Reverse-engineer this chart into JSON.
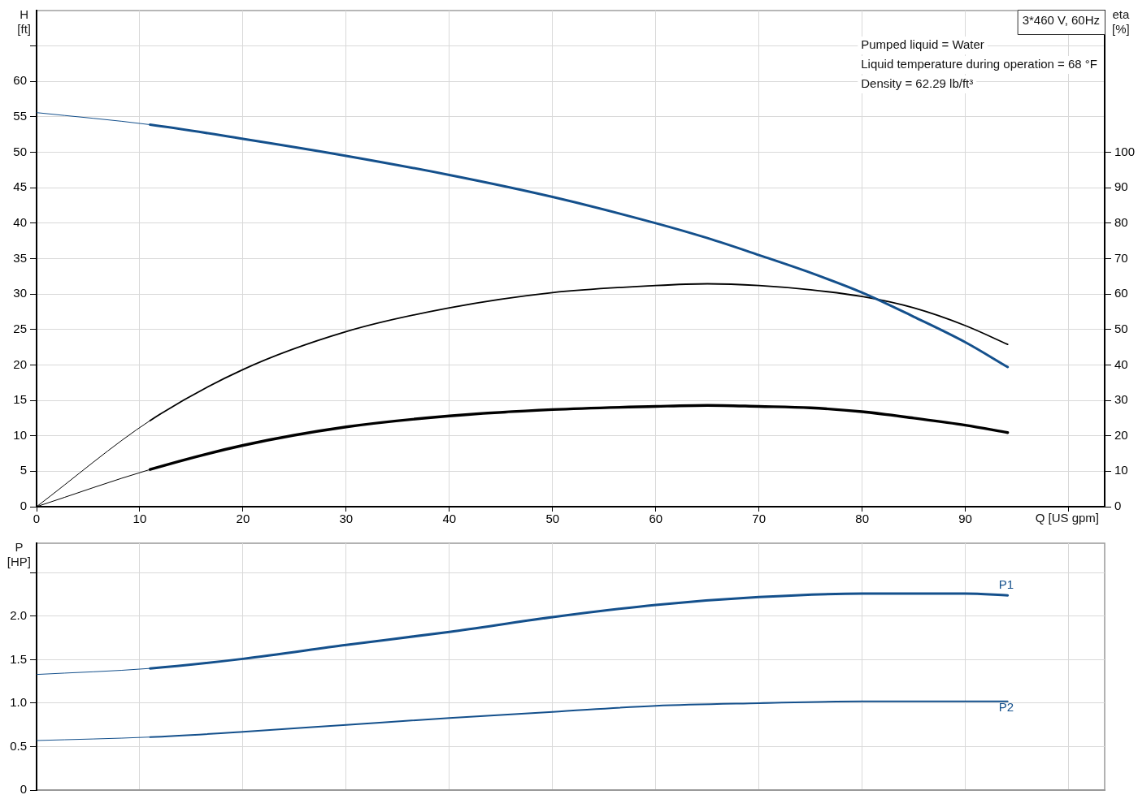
{
  "chart_data": [
    {
      "type": "line",
      "title": "3*460 V, 60Hz",
      "xlabel": "Q [US gpm]",
      "ylabel": "H [ft]",
      "y2label": "eta [%]",
      "annotations": [
        "Pumped liquid = Water",
        "Liquid temperature during operation = 68 °F",
        "Density = 62.29 lb/ft³"
      ],
      "x": [
        0,
        11,
        20,
        30,
        40,
        50,
        60,
        65,
        70,
        75,
        80,
        85,
        90,
        94.1
      ],
      "series": [
        {
          "color": "#14508c",
          "values": [
            55.6,
            53.9,
            51.9,
            49.5,
            46.8,
            43.7,
            40.0,
            37.9,
            35.5,
            33.0,
            30.2,
            26.8,
            23.2,
            19.7
          ]
        },
        {
          "color": "#000000",
          "axis": "y2",
          "values": [
            0,
            24.3,
            38.7,
            49.4,
            56.1,
            60.4,
            62.4,
            62.9,
            62.4,
            61.2,
            59.3,
            56.1,
            51.1,
            45.8
          ]
        },
        {
          "color": "#000000",
          "axis": "y2",
          "values": [
            0,
            10.5,
            17.3,
            22.5,
            25.6,
            27.4,
            28.3,
            28.6,
            28.3,
            27.9,
            26.8,
            25.0,
            23.0,
            20.9
          ]
        }
      ],
      "xlim": [
        0,
        103.5
      ],
      "xticks": [
        0,
        10,
        20,
        30,
        40,
        50,
        60,
        70,
        80,
        90,
        {
          "value": 100,
          "label": null
        }
      ],
      "ylim": [
        0,
        70
      ],
      "yticks": [
        0,
        5,
        10,
        15,
        20,
        25,
        30,
        35,
        40,
        45,
        50,
        55,
        60,
        {
          "value": 65,
          "label": null
        }
      ],
      "y2lim": [
        0,
        140
      ],
      "y2ticks": [
        0,
        10,
        20,
        30,
        40,
        50,
        60,
        70,
        80,
        90,
        100
      ],
      "grid": true,
      "marker": "none"
    },
    {
      "type": "line",
      "ylabel": "P [HP]",
      "x": [
        0,
        11,
        20,
        30,
        40,
        50,
        60,
        70,
        80,
        90,
        94.1
      ],
      "series": [
        {
          "name": "P1",
          "color": "#14508c",
          "values": [
            1.33,
            1.4,
            1.51,
            1.67,
            1.82,
            1.99,
            2.13,
            2.22,
            2.26,
            2.26,
            2.24
          ]
        },
        {
          "name": "P2",
          "color": "#14508c",
          "values": [
            0.57,
            0.61,
            0.67,
            0.75,
            0.83,
            0.9,
            0.97,
            1.0,
            1.02,
            1.02,
            1.02
          ]
        }
      ],
      "xlim": [
        0,
        103.5
      ],
      "xticks": [
        0,
        10,
        20,
        30,
        40,
        50,
        60,
        70,
        80,
        90,
        100
      ],
      "ylim": [
        0,
        2.84
      ],
      "yticks": [
        0,
        0.5,
        {
          "value": 1,
          "label": "1.0"
        },
        1.5,
        {
          "value": 2,
          "label": "2.0"
        },
        {
          "value": 2.5,
          "label": null
        }
      ],
      "tick_labels": "y",
      "grid": true,
      "marker": "none"
    }
  ]
}
